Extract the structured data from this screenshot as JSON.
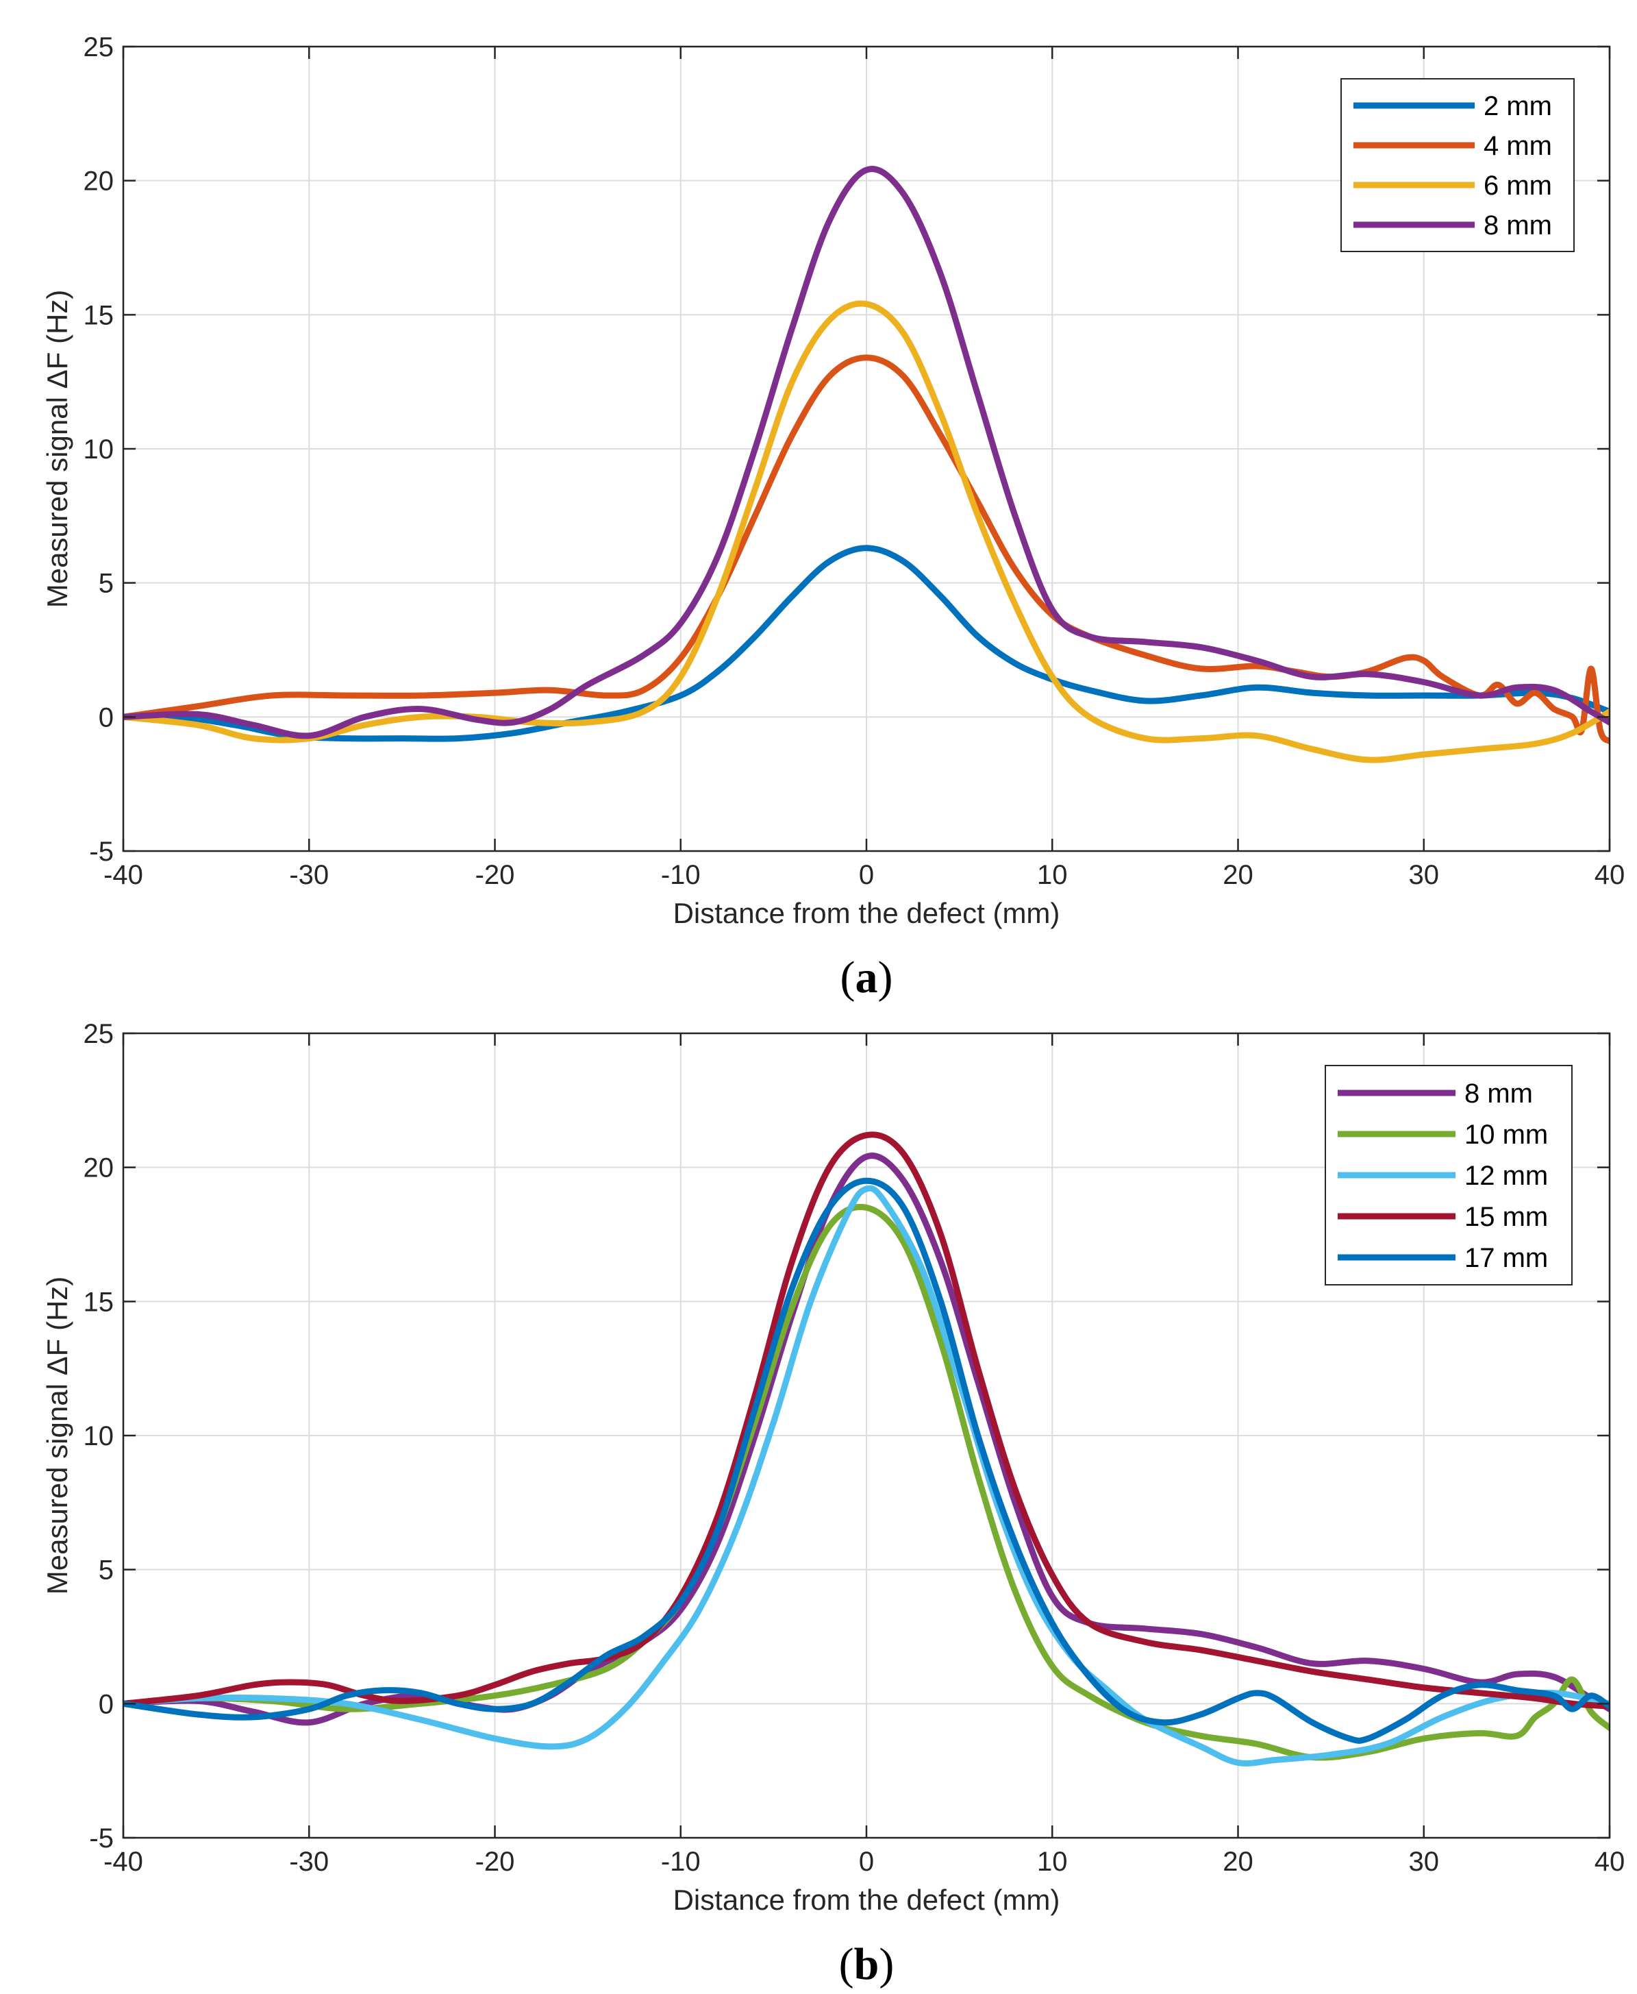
{
  "chart_data": [
    {
      "type": "line",
      "panel_label": "a",
      "panel_label_open": "(",
      "panel_label_close": ")",
      "xlabel": "Distance from the defect (mm)",
      "ylabel": "Measured signal  ΔF (Hz)",
      "xlim": [
        -40,
        40
      ],
      "ylim": [
        -5,
        25
      ],
      "xticks": [
        -40,
        -30,
        -20,
        -10,
        0,
        10,
        20,
        30,
        40
      ],
      "yticks": [
        -5,
        0,
        5,
        10,
        15,
        20,
        25
      ],
      "grid": true,
      "legend_position": "top-right",
      "series": [
        {
          "name": "2 mm",
          "color": "#0072BD",
          "x": [
            -40,
            -37,
            -34,
            -31,
            -28,
            -25,
            -22,
            -19,
            -16,
            -13,
            -10,
            -8,
            -6,
            -4,
            -2,
            0,
            2,
            4,
            6,
            8,
            10,
            12,
            15,
            18,
            21,
            24,
            27,
            30,
            33,
            36,
            38,
            40
          ],
          "y": [
            0.0,
            0.0,
            -0.3,
            -0.7,
            -0.8,
            -0.8,
            -0.8,
            -0.6,
            -0.2,
            0.2,
            0.8,
            1.7,
            3.0,
            4.5,
            5.8,
            6.3,
            5.8,
            4.5,
            3.0,
            2.0,
            1.4,
            1.0,
            0.6,
            0.8,
            1.1,
            0.9,
            0.8,
            0.8,
            0.8,
            0.9,
            0.7,
            0.2
          ]
        },
        {
          "name": "4 mm",
          "color": "#D95319",
          "x": [
            -40,
            -36,
            -32,
            -28,
            -24,
            -20,
            -17,
            -14,
            -12,
            -10,
            -8,
            -6,
            -4,
            -2,
            0,
            2,
            4,
            6,
            8,
            10,
            12,
            15,
            18,
            21,
            23,
            25,
            27,
            29,
            30,
            31,
            33,
            34,
            35,
            36,
            37,
            38,
            38.5,
            39,
            39.5,
            40
          ],
          "y": [
            0.0,
            0.4,
            0.8,
            0.8,
            0.8,
            0.9,
            1.0,
            0.8,
            1.0,
            2.2,
            4.5,
            7.5,
            10.5,
            12.7,
            13.4,
            12.7,
            10.5,
            8.0,
            5.5,
            3.8,
            3.0,
            2.3,
            1.8,
            1.9,
            1.7,
            1.5,
            1.7,
            2.2,
            2.1,
            1.5,
            0.8,
            1.2,
            0.5,
            0.9,
            0.3,
            0.0,
            -0.5,
            1.8,
            -0.5,
            -0.9
          ]
        },
        {
          "name": "6 mm",
          "color": "#EDB120",
          "x": [
            -40,
            -36,
            -33,
            -30,
            -27,
            -24,
            -21,
            -18,
            -15,
            -12,
            -10,
            -8,
            -6,
            -4,
            -2,
            0,
            2,
            4,
            6,
            8,
            10,
            12,
            15,
            18,
            21,
            24,
            27,
            30,
            33,
            36,
            38,
            40
          ],
          "y": [
            0.0,
            -0.3,
            -0.8,
            -0.8,
            -0.3,
            0.0,
            0.0,
            -0.2,
            -0.2,
            0.2,
            1.5,
            4.5,
            8.5,
            12.5,
            14.8,
            15.4,
            14.3,
            11.3,
            7.5,
            4.2,
            1.5,
            0.0,
            -0.8,
            -0.8,
            -0.7,
            -1.2,
            -1.6,
            -1.4,
            -1.2,
            -1.0,
            -0.6,
            0.2
          ]
        },
        {
          "name": "8 mm",
          "color": "#7E2F8E",
          "x": [
            -40,
            -36,
            -33,
            -30,
            -27,
            -24,
            -21,
            -19,
            -17,
            -15,
            -12,
            -10,
            -8,
            -6,
            -4,
            -2,
            0,
            2,
            4,
            6,
            8,
            10,
            12,
            15,
            18,
            21,
            24,
            27,
            30,
            33,
            35,
            37,
            39,
            40
          ],
          "y": [
            0.0,
            0.1,
            -0.3,
            -0.7,
            0.0,
            0.3,
            -0.1,
            -0.2,
            0.3,
            1.2,
            2.3,
            3.5,
            6.0,
            10.0,
            14.5,
            18.5,
            20.4,
            19.5,
            16.5,
            12.0,
            7.5,
            4.0,
            3.0,
            2.8,
            2.6,
            2.1,
            1.5,
            1.6,
            1.3,
            0.8,
            1.1,
            1.0,
            0.2,
            -0.2
          ]
        }
      ]
    },
    {
      "type": "line",
      "panel_label": "b",
      "panel_label_open": "(",
      "panel_label_close": ")",
      "xlabel": "Distance from the defect (mm)",
      "ylabel": "Measured signal  ΔF (Hz)",
      "xlim": [
        -40,
        40
      ],
      "ylim": [
        -5,
        25
      ],
      "xticks": [
        -40,
        -30,
        -20,
        -10,
        0,
        10,
        20,
        30,
        40
      ],
      "yticks": [
        -5,
        0,
        5,
        10,
        15,
        20,
        25
      ],
      "grid": true,
      "legend_position": "top-right",
      "series": [
        {
          "name": "8 mm",
          "color": "#7E2F8E",
          "x": [
            -40,
            -36,
            -33,
            -30,
            -27,
            -24,
            -21,
            -19,
            -17,
            -15,
            -12,
            -10,
            -8,
            -6,
            -4,
            -2,
            0,
            2,
            4,
            6,
            8,
            10,
            12,
            15,
            18,
            21,
            24,
            27,
            30,
            33,
            35,
            37,
            39,
            40
          ],
          "y": [
            0.0,
            0.1,
            -0.3,
            -0.7,
            0.0,
            0.3,
            -0.1,
            -0.2,
            0.3,
            1.2,
            2.3,
            3.5,
            6.0,
            10.0,
            14.5,
            18.5,
            20.4,
            19.5,
            16.5,
            12.0,
            7.5,
            4.0,
            3.0,
            2.8,
            2.6,
            2.1,
            1.5,
            1.6,
            1.3,
            0.8,
            1.1,
            1.0,
            0.2,
            -0.2
          ]
        },
        {
          "name": "10 mm",
          "color": "#77AC30",
          "x": [
            -40,
            -36,
            -32,
            -28,
            -24,
            -20,
            -17,
            -14,
            -12,
            -10,
            -8,
            -6,
            -4,
            -2,
            0,
            2,
            4,
            6,
            8,
            10,
            12,
            15,
            18,
            21,
            24,
            27,
            30,
            33,
            35,
            36,
            37,
            38,
            39,
            40
          ],
          "y": [
            0.0,
            0.2,
            0.1,
            -0.2,
            0.0,
            0.3,
            0.7,
            1.3,
            2.3,
            3.8,
            6.5,
            10.5,
            14.8,
            17.8,
            18.5,
            17.2,
            13.5,
            8.5,
            4.2,
            1.4,
            0.3,
            -0.7,
            -1.2,
            -1.5,
            -2.0,
            -1.8,
            -1.3,
            -1.1,
            -1.2,
            -0.5,
            0.0,
            0.9,
            -0.3,
            -0.9
          ]
        },
        {
          "name": "12 mm",
          "color": "#4DBEEE",
          "x": [
            -40,
            -36,
            -32,
            -28,
            -24,
            -20,
            -17,
            -15,
            -13,
            -11,
            -9,
            -7,
            -5,
            -3,
            -1,
            0,
            1,
            3,
            5,
            7,
            9,
            11,
            13,
            15,
            18,
            20,
            22,
            25,
            28,
            31,
            34,
            37,
            40
          ],
          "y": [
            0.0,
            0.2,
            0.2,
            0.0,
            -0.6,
            -1.3,
            -1.6,
            -1.3,
            -0.2,
            1.5,
            3.5,
            6.5,
            10.5,
            15.0,
            18.3,
            19.2,
            18.7,
            16.2,
            12.0,
            7.5,
            4.0,
            1.8,
            0.5,
            -0.6,
            -1.6,
            -2.2,
            -2.1,
            -1.9,
            -1.5,
            -0.5,
            0.2,
            0.4,
            0.0
          ]
        },
        {
          "name": "15 mm",
          "color": "#A2142F",
          "x": [
            -40,
            -36,
            -33,
            -31,
            -29,
            -27,
            -25,
            -22,
            -20,
            -18,
            -16,
            -14,
            -12,
            -10,
            -8,
            -6,
            -4,
            -2,
            0,
            2,
            4,
            6,
            8,
            10,
            12,
            15,
            18,
            21,
            24,
            27,
            30,
            33,
            36,
            38,
            40
          ],
          "y": [
            0.0,
            0.3,
            0.7,
            0.8,
            0.7,
            0.3,
            0.1,
            0.3,
            0.7,
            1.2,
            1.5,
            1.7,
            2.3,
            4.0,
            7.0,
            11.5,
            16.5,
            20.0,
            21.2,
            20.5,
            17.5,
            12.5,
            8.0,
            4.8,
            3.0,
            2.3,
            2.0,
            1.6,
            1.2,
            0.9,
            0.6,
            0.4,
            0.2,
            0.0,
            -0.1
          ]
        },
        {
          "name": "17 mm",
          "color": "#0072BD",
          "x": [
            -40,
            -36,
            -33,
            -30,
            -28,
            -26,
            -24,
            -22,
            -20,
            -18,
            -16,
            -14,
            -12,
            -10,
            -8,
            -6,
            -4,
            -2,
            0,
            2,
            4,
            6,
            8,
            10,
            12,
            14,
            16,
            18,
            20,
            21,
            22,
            24,
            26,
            27,
            29,
            31,
            33,
            35,
            37,
            38,
            39,
            40
          ],
          "y": [
            0.0,
            -0.4,
            -0.5,
            -0.2,
            0.3,
            0.5,
            0.4,
            0.0,
            -0.2,
            0.0,
            0.8,
            1.8,
            2.5,
            3.8,
            6.5,
            11.0,
            15.5,
            18.5,
            19.5,
            18.5,
            15.0,
            10.0,
            6.0,
            3.0,
            1.0,
            -0.3,
            -0.7,
            -0.4,
            0.2,
            0.4,
            0.2,
            -0.7,
            -1.3,
            -1.3,
            -0.6,
            0.3,
            0.7,
            0.5,
            0.3,
            -0.2,
            0.3,
            -0.1
          ]
        }
      ]
    }
  ]
}
